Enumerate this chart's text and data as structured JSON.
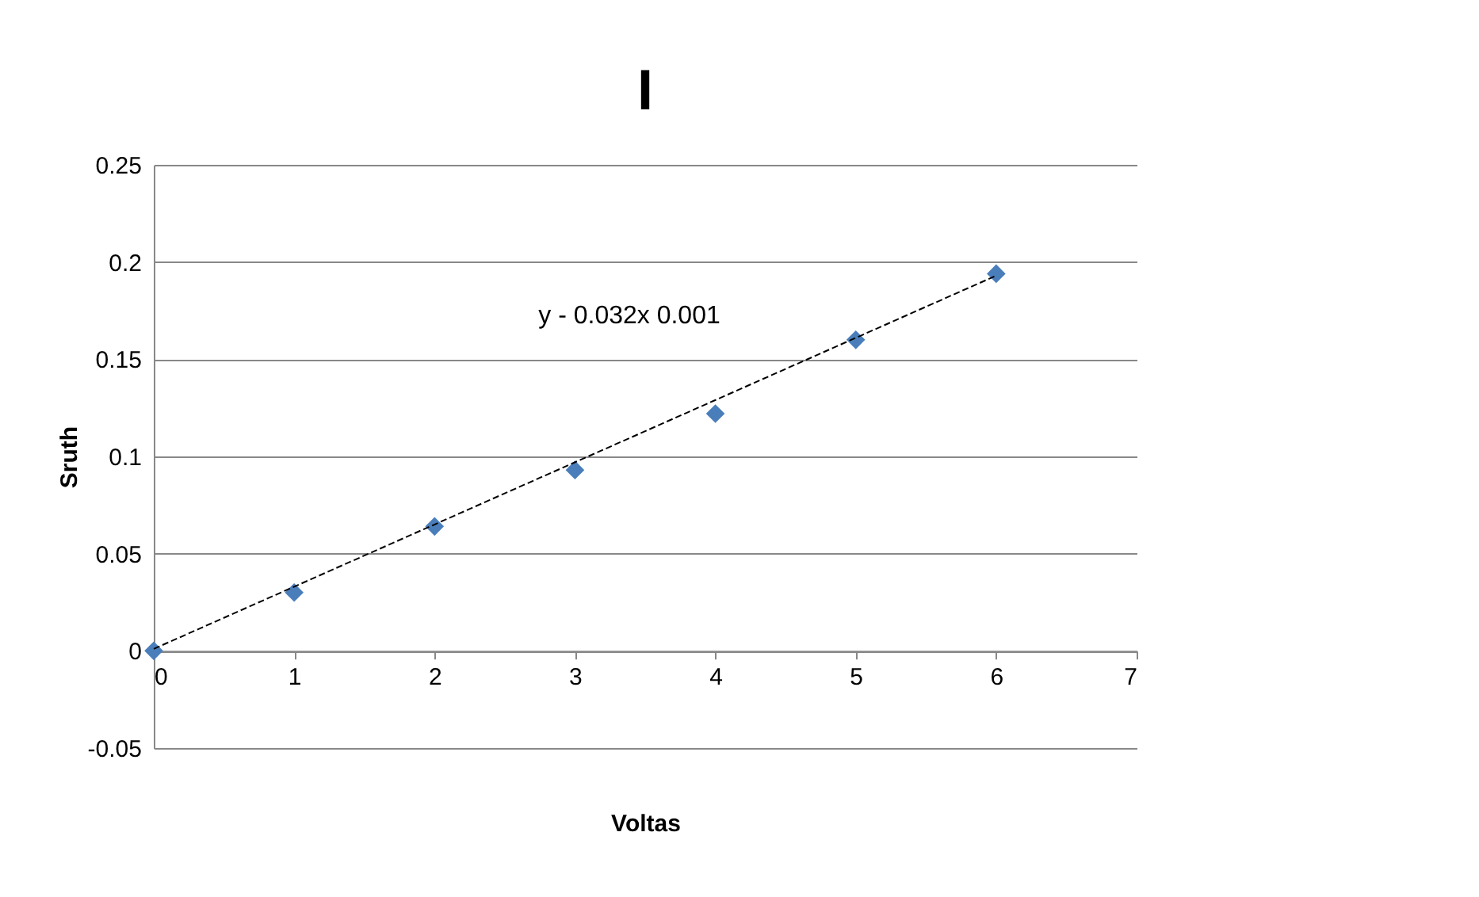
{
  "chart_data": {
    "type": "scatter",
    "title": "I",
    "xlabel": "Voltas",
    "ylabel": "Sruth",
    "x": [
      0,
      1,
      2,
      3,
      4,
      5,
      6
    ],
    "series": [
      {
        "color": "#4a7ebb",
        "marker": "diamond",
        "values": [
          0,
          0.03,
          0.064,
          0.093,
          0.122,
          0.16,
          0.194
        ]
      },
      {
        "type": "line",
        "color": "#000000",
        "line_style": "dashed",
        "x": [
          0,
          6
        ],
        "values": [
          0.001,
          0.193
        ]
      }
    ],
    "annotations": [
      "y - 0.032x   0.001"
    ],
    "xlim": [
      0,
      7
    ],
    "xticks": [
      0,
      1,
      2,
      3,
      4,
      5,
      6,
      7
    ],
    "ylim": [
      -0.05,
      0.25
    ],
    "yticks": [
      -0.05,
      0,
      0.05,
      0.1,
      0.15,
      0.2,
      0.25
    ],
    "grid": "y"
  }
}
